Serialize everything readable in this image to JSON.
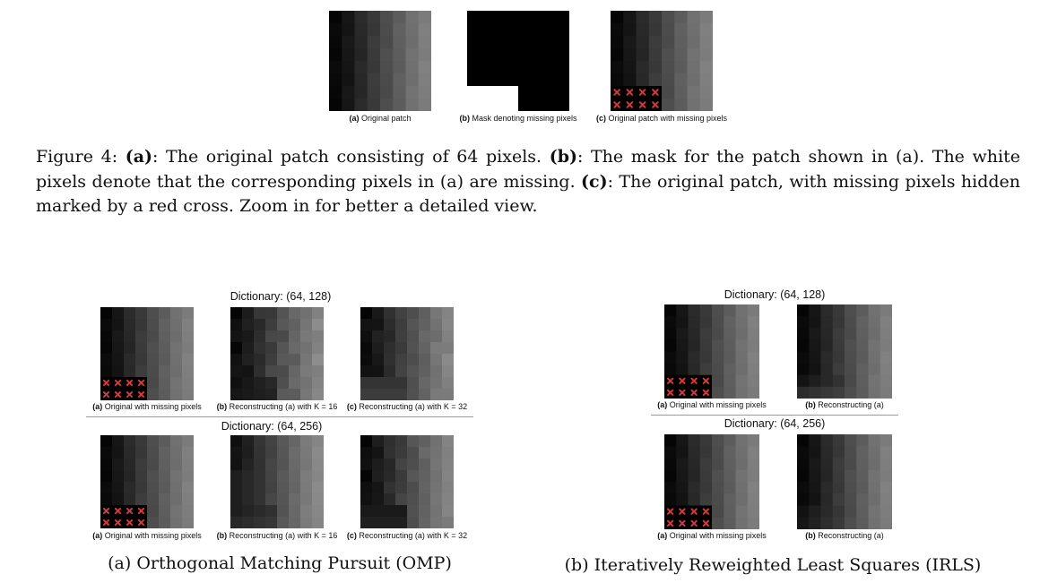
{
  "figure4": {
    "panels": [
      {
        "tag": "(a)",
        "text": "Original patch"
      },
      {
        "tag": "(b)",
        "text": "Mask denoting missing pixels"
      },
      {
        "tag": "(c)",
        "text": "Original patch with missing pixels"
      }
    ],
    "caption": {
      "prefix": "Figure 4: ",
      "a_tag": "(a)",
      "a_text": ": The original patch consisting of 64 pixels. ",
      "b_tag": "(b)",
      "b_text": ": The mask for the patch shown in (a). The white pixels denote that the corresponding pixels in (a) are missing. ",
      "c_tag": "(c)",
      "c_text": ": The original patch, with missing pixels hidden marked by a red cross. Zoom in for better a detailed view."
    }
  },
  "omp": {
    "dict1_title": "Dictionary: (64, 128)",
    "dict2_title": "Dictionary: (64, 256)",
    "row1_labels": [
      {
        "tag": "(a)",
        "text": "Original with missing pixels"
      },
      {
        "tag": "(b)",
        "text": "Reconstructing (a) with K = 16"
      },
      {
        "tag": "(c)",
        "text": "Reconstructing (a) with K = 32"
      }
    ],
    "row2_labels": [
      {
        "tag": "(a)",
        "text": "Original with missing pixels"
      },
      {
        "tag": "(b)",
        "text": "Reconstructing (a) with K = 16"
      },
      {
        "tag": "(c)",
        "text": "Reconstructing (a) with K = 32"
      }
    ],
    "caption": "(a) Orthogonal Matching Pursuit (OMP)"
  },
  "irls": {
    "dict1_title": "Dictionary: (64, 128)",
    "dict2_title": "Dictionary: (64, 256)",
    "row1_labels": [
      {
        "tag": "(a)",
        "text": "Original with missing pixels"
      },
      {
        "tag": "(b)",
        "text": "Reconstructing (a)"
      }
    ],
    "row2_labels": [
      {
        "tag": "(a)",
        "text": "Original with missing pixels"
      },
      {
        "tag": "(b)",
        "text": "Reconstructing (a)"
      }
    ],
    "caption": "(b) Iteratively Reweighted Least Squares (IRLS)"
  },
  "colors": {
    "missing_marker": "#d43a3a",
    "mask_missing": "#ffffff",
    "mask_present": "#000000"
  }
}
